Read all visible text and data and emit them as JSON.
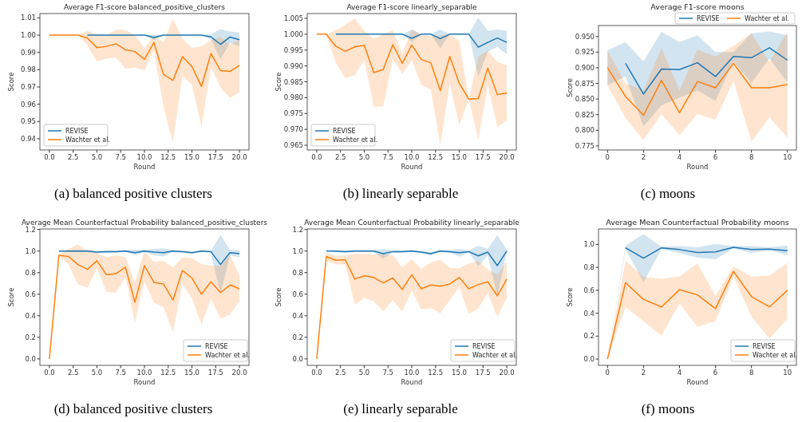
{
  "chart_data": [
    {
      "type": "line",
      "title": "Average F1-score balanced_positive_clusters",
      "xlabel": "Round",
      "ylabel": "Score",
      "legend": "bottom left",
      "annotations": [
        "(a) balanced positive clusters"
      ],
      "x": [
        0,
        1,
        2,
        3,
        4,
        5,
        6,
        7,
        8,
        9,
        10,
        11,
        12,
        13,
        14,
        15,
        16,
        17,
        18,
        19,
        20
      ],
      "xlim": [
        -1,
        21
      ],
      "xticks": [
        {
          "value": 0,
          "label": "0.0"
        },
        {
          "value": 2.5,
          "label": "2.5"
        },
        {
          "value": 5,
          "label": "5.0"
        },
        {
          "value": 7.5,
          "label": "7.5"
        },
        {
          "value": 10,
          "label": "10.0"
        },
        {
          "value": 12.5,
          "label": "12.5"
        },
        {
          "value": 15,
          "label": "15.0"
        },
        {
          "value": 17.5,
          "label": "17.5"
        },
        {
          "value": 20,
          "label": "20.0"
        }
      ],
      "ylim": [
        0.9335,
        1.0125
      ],
      "yticks": [
        0.94,
        0.95,
        0.96,
        0.97,
        0.98,
        0.99,
        {
          "value": 1.0,
          "label": "1.00"
        },
        1.01
      ],
      "series": [
        {
          "name": "REVISE",
          "color": "#1f77b4",
          "values": [
            null,
            null,
            null,
            null,
            1,
            1,
            1,
            1,
            1,
            1,
            1,
            0.9986,
            1,
            1,
            1,
            1,
            1,
            0.999,
            0.9947,
            0.9989,
            0.9974
          ],
          "lower": [
            1,
            1,
            1,
            1,
            1,
            1,
            1,
            1,
            1,
            1,
            1,
            0.997,
            1,
            1,
            1,
            1,
            1,
            0.9975,
            0.986,
            0.9955,
            0.9935
          ],
          "upper": [
            1,
            1,
            1,
            1,
            1,
            1,
            1,
            1,
            1,
            1,
            1,
            1.0002,
            1,
            1,
            1,
            1,
            1,
            1.0005,
            1.0035,
            1.0021,
            1.0015
          ]
        },
        {
          "name": "Wachter et al.",
          "color": "#ff7f0e",
          "values": [
            1,
            1,
            1,
            1,
            0.9983,
            0.9928,
            0.9935,
            0.995,
            0.9915,
            0.9905,
            0.986,
            0.9957,
            0.9773,
            0.9738,
            0.9876,
            0.9818,
            0.9703,
            0.9893,
            0.9795,
            0.979,
            0.9825
          ],
          "lower": [
            1,
            1,
            1,
            1,
            0.994,
            0.9848,
            0.9865,
            0.987,
            0.9805,
            0.9812,
            0.9795,
            0.9915,
            0.9585,
            0.9378,
            0.9765,
            0.9712,
            0.947,
            0.9815,
            0.9695,
            0.9637,
            0.967
          ],
          "upper": [
            1,
            1,
            1,
            1,
            1.0025,
            1.0005,
            1,
            1.0032,
            1.003,
            1,
            0.9925,
            0.9998,
            0.996,
            1.0095,
            0.998,
            0.9925,
            0.9937,
            0.997,
            0.999,
            0.9945,
            0.9975
          ]
        }
      ]
    },
    {
      "type": "line",
      "title": "Average F1-score linearly_separable",
      "xlabel": "Round",
      "ylabel": "Score",
      "legend": "bottom left",
      "annotations": [
        "(b) linearly separable"
      ],
      "x": [
        0,
        1,
        2,
        3,
        4,
        5,
        6,
        7,
        8,
        9,
        10,
        11,
        12,
        13,
        14,
        15,
        16,
        17,
        18,
        19,
        20
      ],
      "xlim": [
        -1,
        21
      ],
      "xticks": [
        {
          "value": 0,
          "label": "0.0"
        },
        {
          "value": 2.5,
          "label": "2.5"
        },
        {
          "value": 5,
          "label": "5.0"
        },
        {
          "value": 7.5,
          "label": "7.5"
        },
        {
          "value": 10,
          "label": "10.0"
        },
        {
          "value": 12.5,
          "label": "12.5"
        },
        {
          "value": 15,
          "label": "15.0"
        },
        {
          "value": 17.5,
          "label": "17.5"
        },
        {
          "value": 20,
          "label": "20.0"
        }
      ],
      "ylim": [
        0.9635,
        1.0065
      ],
      "yticks": [
        0.965,
        {
          "value": 0.97,
          "label": "0.970"
        },
        0.975,
        {
          "value": 0.98,
          "label": "0.980"
        },
        0.985,
        {
          "value": 0.99,
          "label": "0.990"
        },
        0.995,
        {
          "value": 1.0,
          "label": "1.000"
        },
        1.005
      ],
      "series": [
        {
          "name": "REVISE",
          "color": "#1f77b4",
          "values": [
            null,
            null,
            1,
            1,
            1,
            1,
            1,
            1,
            1,
            1,
            0.9987,
            1,
            1,
            0.9986,
            1,
            1,
            1,
            0.9959,
            0.9974,
            0.9988,
            0.9974
          ],
          "lower": [
            1,
            1,
            1,
            1,
            1,
            1,
            1,
            1,
            1,
            1,
            0.9975,
            1,
            1,
            0.9955,
            1,
            1,
            1,
            0.9865,
            0.9945,
            0.996,
            0.9937
          ],
          "upper": [
            1,
            1,
            1,
            1,
            1,
            1,
            1,
            1,
            1,
            1,
            1.0015,
            1,
            1,
            1.0015,
            1,
            1,
            1,
            1.0052,
            1.001,
            1.0015,
            1.001
          ]
        },
        {
          "name": "Wachter et al.",
          "color": "#ff7f0e",
          "values": [
            1,
            1,
            0.9962,
            0.9946,
            0.996,
            0.9965,
            0.9879,
            0.9889,
            0.9967,
            0.9908,
            0.9966,
            0.992,
            0.991,
            0.9822,
            0.993,
            0.9845,
            0.9795,
            0.9797,
            0.9893,
            0.981,
            0.9815
          ],
          "lower": [
            1,
            1,
            0.991,
            0.9862,
            0.987,
            0.9918,
            0.9772,
            0.9772,
            0.9922,
            0.9875,
            0.9918,
            0.984,
            0.9826,
            0.965,
            0.9845,
            0.9712,
            0.9795,
            0.9667,
            0.9838,
            0.9708,
            0.9728
          ],
          "upper": [
            1,
            1,
            1.0012,
            1.003,
            1.005,
            1.001,
            0.9985,
            1,
            1.0012,
            0.994,
            1.0015,
            0.9998,
            0.9995,
            0.9995,
            1,
            0.9978,
            0.9795,
            0.993,
            0.9948,
            0.9912,
            0.9902
          ]
        }
      ]
    },
    {
      "type": "line",
      "title": "Average F1-score moons",
      "xlabel": "Round",
      "ylabel": "Score",
      "legend": "top right",
      "annotations": [
        "(c) moons"
      ],
      "x": [
        0,
        1,
        2,
        3,
        4,
        5,
        6,
        7,
        8,
        9,
        10
      ],
      "xlim": [
        -0.5,
        10.5
      ],
      "xticks": [
        0,
        2,
        4,
        6,
        8,
        10
      ],
      "ylim": [
        0.7685,
        0.9675
      ],
      "yticks": [
        0.775,
        {
          "value": 0.8,
          "label": "0.800"
        },
        0.825,
        {
          "value": 0.85,
          "label": "0.850"
        },
        0.875,
        {
          "value": 0.9,
          "label": "0.900"
        },
        0.925,
        {
          "value": 0.95,
          "label": "0.950"
        }
      ],
      "series": [
        {
          "name": "REVISE",
          "color": "#1f77b4",
          "values": [
            null,
            0.907,
            0.858,
            0.898,
            0.897,
            0.908,
            0.886,
            0.918,
            0.916,
            0.932,
            0.912
          ],
          "lower": [
            0.872,
            0.886,
            0.806,
            0.84,
            0.852,
            0.864,
            0.847,
            0.91,
            0.876,
            0.915,
            0.876
          ],
          "upper": [
            0.928,
            0.941,
            0.91,
            0.9575,
            0.941,
            0.952,
            0.925,
            0.925,
            0.955,
            0.958,
            0.952
          ]
        },
        {
          "name": "Wachter et al.",
          "color": "#ff7f0e",
          "values": [
            0.9,
            0.854,
            0.824,
            0.88,
            0.828,
            0.878,
            0.868,
            0.907,
            0.868,
            0.868,
            0.873
          ],
          "lower": [
            0.872,
            0.82,
            0.784,
            0.826,
            0.792,
            0.826,
            0.817,
            0.879,
            0.782,
            0.821,
            0.788
          ],
          "upper": [
            0.927,
            0.875,
            0.864,
            0.931,
            0.864,
            0.929,
            0.918,
            0.935,
            0.955,
            0.909,
            0.958
          ]
        }
      ]
    },
    {
      "type": "line",
      "title": "Average Mean Counterfactual Probability balanced_positive_clusters",
      "xlabel": "Round",
      "ylabel": "Score",
      "legend": "bottom right",
      "annotations": [
        "(d) balanced positive clusters"
      ],
      "x": [
        0,
        1,
        2,
        3,
        4,
        5,
        6,
        7,
        8,
        9,
        10,
        11,
        12,
        13,
        14,
        15,
        16,
        17,
        18,
        19,
        20
      ],
      "xlim": [
        -1,
        21
      ],
      "xticks": [
        {
          "value": 0,
          "label": "0.0"
        },
        {
          "value": 2.5,
          "label": "2.5"
        },
        {
          "value": 5,
          "label": "5.0"
        },
        {
          "value": 7.5,
          "label": "7.5"
        },
        {
          "value": 10,
          "label": "10.0"
        },
        {
          "value": 12.5,
          "label": "12.5"
        },
        {
          "value": 15,
          "label": "15.0"
        },
        {
          "value": 17.5,
          "label": "17.5"
        },
        {
          "value": 20,
          "label": "20.0"
        }
      ],
      "ylim": [
        -0.06,
        1.205
      ],
      "yticks": [
        {
          "value": 0,
          "label": "0.0"
        },
        0.2,
        0.4,
        0.6,
        0.8,
        {
          "value": 1,
          "label": "1.0"
        },
        1.2
      ],
      "series": [
        {
          "name": "REVISE",
          "color": "#1f77b4",
          "values": [
            null,
            1,
            1,
            1,
            1,
            0.99,
            0.995,
            0.995,
            1,
            0.985,
            1,
            0.99,
            0.985,
            1,
            0.995,
            0.985,
            1,
            0.995,
            0.875,
            0.985,
            0.975
          ],
          "lower": [
            0,
            1,
            0.99,
            0.99,
            0.99,
            0.98,
            0.985,
            0.985,
            0.99,
            0.96,
            0.99,
            0.96,
            0.95,
            0.99,
            0.985,
            0.975,
            0.99,
            0.985,
            0.6,
            0.96,
            0.94
          ],
          "upper": [
            0,
            1,
            1.01,
            1.01,
            1.01,
            1,
            1.005,
            1.005,
            1.01,
            1.01,
            1.01,
            1.02,
            1.025,
            1.01,
            1.005,
            0.995,
            1.01,
            1,
            1.15,
            1.01,
            1.01
          ]
        },
        {
          "name": "Wachter et al.",
          "color": "#ff7f0e",
          "values": [
            0,
            0.96,
            0.95,
            0.875,
            0.83,
            0.91,
            0.78,
            0.79,
            0.85,
            0.525,
            0.865,
            0.71,
            0.695,
            0.545,
            0.82,
            0.75,
            0.6,
            0.715,
            0.615,
            0.685,
            0.65
          ],
          "lower": [
            0,
            0.95,
            0.88,
            0.69,
            0.66,
            0.84,
            0.62,
            0.615,
            0.76,
            0.34,
            0.72,
            0.52,
            0.48,
            0.25,
            0.69,
            0.56,
            0.32,
            0.56,
            0.375,
            0.41,
            0.535
          ],
          "upper": [
            0,
            0.97,
            1.02,
            1.06,
            1,
            0.98,
            0.945,
            0.96,
            0.945,
            0.71,
            1,
            0.9,
            0.91,
            0.85,
            0.94,
            0.935,
            0.88,
            0.865,
            0.865,
            0.96,
            0.78
          ]
        }
      ]
    },
    {
      "type": "line",
      "title": "Average Mean Counterfactual Probability linearly_separable",
      "xlabel": "Round",
      "ylabel": "Score",
      "legend": "bottom right",
      "annotations": [
        "(e) linearly separable"
      ],
      "x": [
        0,
        1,
        2,
        3,
        4,
        5,
        6,
        7,
        8,
        9,
        10,
        11,
        12,
        13,
        14,
        15,
        16,
        17,
        18,
        19,
        20
      ],
      "xlim": [
        -1,
        21
      ],
      "xticks": [
        {
          "value": 0,
          "label": "0.0"
        },
        {
          "value": 2.5,
          "label": "2.5"
        },
        {
          "value": 5,
          "label": "5.0"
        },
        {
          "value": 7.5,
          "label": "7.5"
        },
        {
          "value": 10,
          "label": "10.0"
        },
        {
          "value": 12.5,
          "label": "12.5"
        },
        {
          "value": 15,
          "label": "15.0"
        },
        {
          "value": 17.5,
          "label": "17.5"
        },
        {
          "value": 20,
          "label": "20.0"
        }
      ],
      "ylim": [
        -0.06,
        1.205
      ],
      "yticks": [
        {
          "value": 0,
          "label": "0.0"
        },
        0.2,
        0.4,
        0.6,
        0.8,
        {
          "value": 1,
          "label": "1.0"
        },
        1.2
      ],
      "series": [
        {
          "name": "REVISE",
          "color": "#1f77b4",
          "values": [
            null,
            1,
            1,
            0.995,
            1,
            1,
            1,
            0.975,
            0.995,
            0.995,
            1,
            0.99,
            0.975,
            1,
            0.995,
            0.985,
            0.995,
            0.955,
            0.99,
            0.865,
            1
          ],
          "lower": [
            0,
            1,
            0.99,
            0.985,
            0.99,
            0.99,
            0.99,
            0.93,
            0.985,
            0.985,
            0.99,
            0.98,
            0.96,
            0.99,
            0.985,
            0.95,
            0.985,
            0.86,
            0.96,
            0.58,
            0.99
          ],
          "upper": [
            0,
            1,
            1.01,
            1.005,
            1.01,
            1.01,
            1.01,
            1.02,
            1.005,
            1.005,
            1.01,
            1,
            0.99,
            1.01,
            1.005,
            1.02,
            1.005,
            1.05,
            1.02,
            1.15,
            1.01
          ]
        },
        {
          "name": "Wachter et al.",
          "color": "#ff7f0e",
          "values": [
            0,
            0.95,
            0.915,
            0.92,
            0.74,
            0.77,
            0.755,
            0.705,
            0.75,
            0.645,
            0.78,
            0.65,
            0.685,
            0.675,
            0.695,
            0.755,
            0.65,
            0.69,
            0.715,
            0.585,
            0.74
          ],
          "lower": [
            0,
            0.91,
            0.875,
            0.875,
            0.5,
            0.565,
            0.535,
            0.44,
            0.545,
            0.44,
            0.635,
            0.46,
            0.47,
            0.425,
            0.545,
            0.665,
            0.415,
            0.47,
            0.61,
            0.39,
            0.565
          ],
          "upper": [
            0,
            0.985,
            0.955,
            0.96,
            0.975,
            0.975,
            0.97,
            0.97,
            0.96,
            0.85,
            0.925,
            0.835,
            0.895,
            0.92,
            0.845,
            0.84,
            0.885,
            0.91,
            0.83,
            0.78,
            0.905
          ]
        }
      ]
    },
    {
      "type": "line",
      "title": "Average Mean Counterfactual Probability moons",
      "xlabel": "Round",
      "ylabel": "Score",
      "legend": "bottom right",
      "annotations": [
        "(f) moons"
      ],
      "x": [
        0,
        1,
        2,
        3,
        4,
        5,
        6,
        7,
        8,
        9,
        10
      ],
      "xlim": [
        -0.5,
        10.5
      ],
      "xticks": [
        0,
        2,
        4,
        6,
        8,
        10
      ],
      "ylim": [
        -0.055,
        1.135
      ],
      "yticks": [
        {
          "value": 0,
          "label": "0.0"
        },
        0.2,
        0.4,
        0.6,
        0.8,
        {
          "value": 1,
          "label": "1.0"
        }
      ],
      "series": [
        {
          "name": "REVISE",
          "color": "#1f77b4",
          "values": [
            null,
            0.97,
            0.88,
            0.97,
            0.955,
            0.93,
            0.935,
            0.975,
            0.955,
            0.96,
            0.945
          ],
          "lower": [
            0,
            0.96,
            0.67,
            0.96,
            0.925,
            0.885,
            0.87,
            0.965,
            0.925,
            0.95,
            0.905
          ],
          "upper": [
            0,
            0.99,
            1.09,
            0.98,
            0.985,
            0.975,
            1.005,
            0.985,
            0.985,
            0.975,
            0.99
          ]
        },
        {
          "name": "Wachter et al.",
          "color": "#ff7f0e",
          "values": [
            0,
            0.665,
            0.52,
            0.455,
            0.605,
            0.56,
            0.44,
            0.765,
            0.545,
            0.455,
            0.6
          ],
          "lower": [
            0,
            0.455,
            0.33,
            0.205,
            0.485,
            0.28,
            0.33,
            0.72,
            0.37,
            0.18,
            0.35
          ],
          "upper": [
            0,
            0.86,
            0.715,
            0.7,
            0.72,
            0.835,
            0.55,
            0.81,
            0.72,
            0.73,
            0.84
          ]
        }
      ]
    }
  ]
}
